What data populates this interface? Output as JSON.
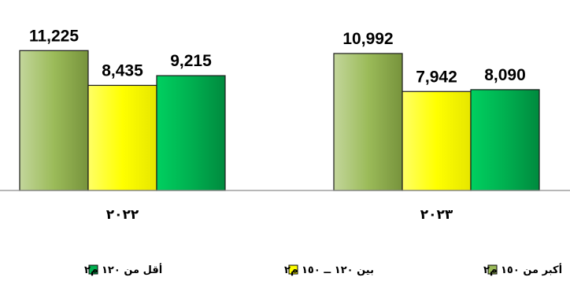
{
  "chart_data": {
    "type": "bar",
    "categories": [
      "٢٠٢٢",
      "٢٠٢٣"
    ],
    "series": [
      {
        "name": "أكبر من ١٥٠ م٢",
        "values": [
          11225,
          10992
        ],
        "labels": [
          "11,225",
          "10,992"
        ],
        "color": "#9bbb59"
      },
      {
        "name": "بين ١٢٠ ــ ١٥٠ م٢",
        "values": [
          8435,
          7942
        ],
        "labels": [
          "8,435",
          "7,942"
        ],
        "color": "#ffff00"
      },
      {
        "name": "أقل من ١٢٠ م٢",
        "values": [
          9215,
          8090
        ],
        "labels": [
          "9,215",
          "8,090"
        ],
        "color": "#00b050"
      }
    ],
    "ylim": [
      0,
      12000
    ],
    "grid": false,
    "legend_position": "bottom",
    "title": "",
    "xlabel": "",
    "ylabel": ""
  }
}
